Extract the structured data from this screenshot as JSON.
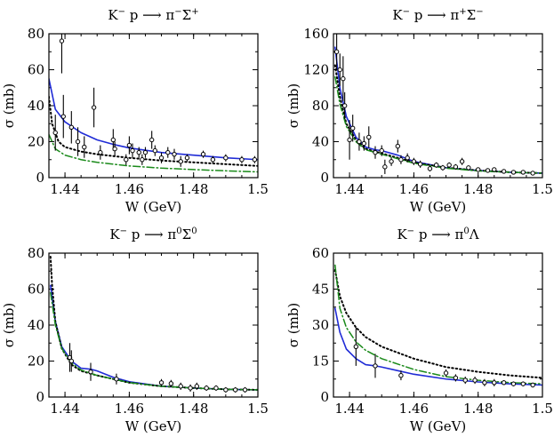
{
  "colors": {
    "blue_solid": "#1f2bd6",
    "black_dotted": "#000000",
    "green_dashdot": "#1a8a1a"
  },
  "chart_data": [
    {
      "type": "scatter",
      "title": {
        "prefix": "K",
        "prefix_sup": "−",
        "mid": " p ",
        "arrow": "⟶",
        "particle1": "π",
        "particle1_sup": "−",
        "particle2": "Σ",
        "particle2_sup": "+"
      },
      "xlabel": "W (GeV)",
      "ylabel": "σ (mb)",
      "xlim": [
        1.435,
        1.5
      ],
      "ylim": [
        0,
        80
      ],
      "xticks": [
        1.44,
        1.46,
        1.48,
        1.5
      ],
      "xtick_labels": [
        "1.44",
        "1.46",
        "1.48",
        "1.5"
      ],
      "yticks": [
        0,
        20,
        40,
        60,
        80
      ],
      "ytick_labels": [
        "0",
        "20",
        "40",
        "60",
        "80"
      ],
      "series": [
        {
          "name": "blue-solid",
          "x": [
            1.435,
            1.437,
            1.44,
            1.445,
            1.45,
            1.455,
            1.46,
            1.47,
            1.48,
            1.49,
            1.5
          ],
          "y": [
            55,
            38,
            31,
            25,
            21,
            18.5,
            16.5,
            14,
            12.5,
            11,
            10
          ]
        },
        {
          "name": "black-dotted",
          "x": [
            1.435,
            1.436,
            1.438,
            1.44,
            1.445,
            1.45,
            1.46,
            1.47,
            1.48,
            1.49,
            1.5
          ],
          "y": [
            45,
            30,
            20,
            17,
            14.5,
            13,
            11,
            9.5,
            8.5,
            7.5,
            6.5
          ]
        },
        {
          "name": "green-dashdot",
          "x": [
            1.435,
            1.437,
            1.44,
            1.445,
            1.45,
            1.46,
            1.47,
            1.48,
            1.49,
            1.5
          ],
          "y": [
            24,
            16,
            12.5,
            10,
            8.5,
            6.5,
            5.3,
            4.5,
            3.8,
            3.2
          ]
        }
      ],
      "points": [
        {
          "x": 1.437,
          "y": 25,
          "err": 10
        },
        {
          "x": 1.439,
          "y": 76,
          "err": 18
        },
        {
          "x": 1.4395,
          "y": 34,
          "err": 12
        },
        {
          "x": 1.442,
          "y": 28,
          "err": 9
        },
        {
          "x": 1.444,
          "y": 20,
          "err": 8
        },
        {
          "x": 1.446,
          "y": 17,
          "err": 6
        },
        {
          "x": 1.449,
          "y": 39,
          "err": 11
        },
        {
          "x": 1.451,
          "y": 14,
          "err": 4
        },
        {
          "x": 1.455,
          "y": 21,
          "err": 6
        },
        {
          "x": 1.4555,
          "y": 16,
          "err": 4
        },
        {
          "x": 1.459,
          "y": 10,
          "err": 3
        },
        {
          "x": 1.46,
          "y": 18,
          "err": 5
        },
        {
          "x": 1.461,
          "y": 15,
          "err": 4
        },
        {
          "x": 1.463,
          "y": 14,
          "err": 3
        },
        {
          "x": 1.464,
          "y": 10,
          "err": 3
        },
        {
          "x": 1.465,
          "y": 14,
          "err": 3
        },
        {
          "x": 1.467,
          "y": 21,
          "err": 5
        },
        {
          "x": 1.468,
          "y": 15,
          "err": 3
        },
        {
          "x": 1.47,
          "y": 11,
          "err": 3
        },
        {
          "x": 1.472,
          "y": 14,
          "err": 3
        },
        {
          "x": 1.474,
          "y": 13,
          "err": 3
        },
        {
          "x": 1.476,
          "y": 9,
          "err": 3
        },
        {
          "x": 1.478,
          "y": 11,
          "err": 2
        },
        {
          "x": 1.483,
          "y": 13,
          "err": 2
        },
        {
          "x": 1.486,
          "y": 10,
          "err": 2
        },
        {
          "x": 1.49,
          "y": 11,
          "err": 2
        },
        {
          "x": 1.495,
          "y": 10,
          "err": 2
        },
        {
          "x": 1.499,
          "y": 10,
          "err": 2
        }
      ]
    },
    {
      "type": "scatter",
      "title": {
        "prefix": "K",
        "prefix_sup": "−",
        "mid": " p ",
        "arrow": "⟶",
        "particle1": "π",
        "particle1_sup": "+",
        "particle2": "Σ",
        "particle2_sup": "−"
      },
      "xlabel": "W (GeV)",
      "ylabel": "σ (mb)",
      "xlim": [
        1.435,
        1.5
      ],
      "ylim": [
        0,
        160
      ],
      "xticks": [
        1.44,
        1.46,
        1.48,
        1.5
      ],
      "xtick_labels": [
        "1.44",
        "1.46",
        "1.48",
        "1.5"
      ],
      "yticks": [
        0,
        40,
        80,
        120,
        160
      ],
      "ytick_labels": [
        "0",
        "40",
        "80",
        "120",
        "160"
      ],
      "series": [
        {
          "name": "blue-solid",
          "x": [
            1.4355,
            1.437,
            1.439,
            1.442,
            1.445,
            1.448,
            1.45,
            1.455,
            1.46,
            1.47,
            1.48,
            1.49,
            1.5
          ],
          "y": [
            145,
            100,
            68,
            45,
            34,
            31,
            30,
            25,
            18,
            11,
            8,
            6,
            5
          ]
        },
        {
          "name": "black-dotted",
          "x": [
            1.4355,
            1.437,
            1.439,
            1.442,
            1.445,
            1.45,
            1.46,
            1.47,
            1.48,
            1.49,
            1.5
          ],
          "y": [
            125,
            90,
            60,
            42,
            32,
            27,
            17,
            11,
            8,
            6,
            5
          ]
        },
        {
          "name": "green-dashdot",
          "x": [
            1.4355,
            1.437,
            1.439,
            1.442,
            1.445,
            1.45,
            1.46,
            1.47,
            1.48,
            1.49,
            1.5
          ],
          "y": [
            112,
            82,
            57,
            40,
            31,
            26,
            16,
            10.5,
            7.5,
            6,
            5
          ]
        }
      ],
      "points": [
        {
          "x": 1.436,
          "y": 140,
          "err": 20
        },
        {
          "x": 1.437,
          "y": 120,
          "err": 18
        },
        {
          "x": 1.438,
          "y": 110,
          "err": 25
        },
        {
          "x": 1.4385,
          "y": 80,
          "err": 15
        },
        {
          "x": 1.44,
          "y": 42,
          "err": 22
        },
        {
          "x": 1.441,
          "y": 55,
          "err": 15
        },
        {
          "x": 1.443,
          "y": 40,
          "err": 10
        },
        {
          "x": 1.4445,
          "y": 38,
          "err": 8
        },
        {
          "x": 1.446,
          "y": 45,
          "err": 12
        },
        {
          "x": 1.448,
          "y": 28,
          "err": 7
        },
        {
          "x": 1.45,
          "y": 30,
          "err": 6
        },
        {
          "x": 1.451,
          "y": 12,
          "err": 8
        },
        {
          "x": 1.453,
          "y": 18,
          "err": 5
        },
        {
          "x": 1.455,
          "y": 35,
          "err": 7
        },
        {
          "x": 1.456,
          "y": 20,
          "err": 5
        },
        {
          "x": 1.458,
          "y": 22,
          "err": 5
        },
        {
          "x": 1.46,
          "y": 18,
          "err": 4
        },
        {
          "x": 1.462,
          "y": 15,
          "err": 4
        },
        {
          "x": 1.465,
          "y": 10,
          "err": 3
        },
        {
          "x": 1.467,
          "y": 14,
          "err": 3
        },
        {
          "x": 1.469,
          "y": 11,
          "err": 3
        },
        {
          "x": 1.471,
          "y": 14,
          "err": 3
        },
        {
          "x": 1.473,
          "y": 12,
          "err": 3
        },
        {
          "x": 1.475,
          "y": 18,
          "err": 4
        },
        {
          "x": 1.477,
          "y": 11,
          "err": 2
        },
        {
          "x": 1.48,
          "y": 9,
          "err": 2
        },
        {
          "x": 1.483,
          "y": 8,
          "err": 2
        },
        {
          "x": 1.485,
          "y": 9,
          "err": 2
        },
        {
          "x": 1.488,
          "y": 7,
          "err": 2
        },
        {
          "x": 1.491,
          "y": 6,
          "err": 2
        },
        {
          "x": 1.494,
          "y": 6,
          "err": 2
        },
        {
          "x": 1.497,
          "y": 5,
          "err": 1
        }
      ]
    },
    {
      "type": "scatter",
      "title": {
        "prefix": "K",
        "prefix_sup": "−",
        "mid": " p ",
        "arrow": "⟶",
        "particle1": "π",
        "particle1_sup": "0",
        "particle2": "Σ",
        "particle2_sup": "0"
      },
      "xlabel": "W (GeV)",
      "ylabel": "σ (mb)",
      "xlim": [
        1.435,
        1.5
      ],
      "ylim": [
        0,
        80
      ],
      "xticks": [
        1.44,
        1.46,
        1.48,
        1.5
      ],
      "xtick_labels": [
        "1.44",
        "1.46",
        "1.48",
        "1.5"
      ],
      "yticks": [
        0,
        20,
        40,
        60,
        80
      ],
      "ytick_labels": [
        "0",
        "20",
        "40",
        "60",
        "80"
      ],
      "series": [
        {
          "name": "blue-solid",
          "x": [
            1.4355,
            1.437,
            1.439,
            1.442,
            1.445,
            1.448,
            1.45,
            1.455,
            1.46,
            1.47,
            1.48,
            1.49,
            1.5
          ],
          "y": [
            62,
            42,
            28,
            20,
            16,
            15.5,
            14.5,
            11,
            8.5,
            6,
            5,
            4.3,
            4
          ]
        },
        {
          "name": "black-dotted",
          "x": [
            1.4355,
            1.436,
            1.437,
            1.439,
            1.442,
            1.445,
            1.45,
            1.46,
            1.47,
            1.48,
            1.49,
            1.5
          ],
          "y": [
            78,
            62,
            42,
            27,
            18,
            14.5,
            12,
            8,
            6,
            5,
            4.3,
            4
          ]
        },
        {
          "name": "green-dashdot",
          "x": [
            1.4355,
            1.437,
            1.439,
            1.442,
            1.445,
            1.45,
            1.46,
            1.47,
            1.48,
            1.49,
            1.5
          ],
          "y": [
            58,
            40,
            27,
            19,
            15,
            12,
            8,
            6,
            5,
            4.3,
            4
          ]
        }
      ],
      "points": [
        {
          "x": 1.4415,
          "y": 22,
          "err": 8
        },
        {
          "x": 1.442,
          "y": 20,
          "err": 6
        },
        {
          "x": 1.448,
          "y": 14,
          "err": 5
        },
        {
          "x": 1.456,
          "y": 10,
          "err": 3
        },
        {
          "x": 1.47,
          "y": 8,
          "err": 2
        },
        {
          "x": 1.473,
          "y": 7.5,
          "err": 2
        },
        {
          "x": 1.476,
          "y": 6,
          "err": 2
        },
        {
          "x": 1.479,
          "y": 5,
          "err": 2
        },
        {
          "x": 1.481,
          "y": 6,
          "err": 2
        },
        {
          "x": 1.484,
          "y": 5,
          "err": 1.5
        },
        {
          "x": 1.487,
          "y": 5,
          "err": 1.5
        },
        {
          "x": 1.49,
          "y": 4,
          "err": 1.5
        },
        {
          "x": 1.493,
          "y": 4,
          "err": 1.5
        },
        {
          "x": 1.496,
          "y": 4,
          "err": 1.5
        }
      ]
    },
    {
      "type": "scatter",
      "title": {
        "prefix": "K",
        "prefix_sup": "−",
        "mid": " p ",
        "arrow": "⟶",
        "particle1": "π",
        "particle1_sup": "0",
        "particle2": "Λ",
        "particle2_sup": ""
      },
      "xlabel": "W (GeV)",
      "ylabel": "σ (mb)",
      "xlim": [
        1.435,
        1.5
      ],
      "ylim": [
        0,
        60
      ],
      "xticks": [
        1.44,
        1.46,
        1.48,
        1.5
      ],
      "xtick_labels": [
        "1.44",
        "1.46",
        "1.48",
        "1.5"
      ],
      "yticks": [
        0,
        15,
        30,
        45,
        60
      ],
      "ytick_labels": [
        "0",
        "15",
        "30",
        "45",
        "60"
      ],
      "series": [
        {
          "name": "blue-solid",
          "x": [
            1.4355,
            1.437,
            1.439,
            1.442,
            1.445,
            1.448,
            1.45,
            1.455,
            1.46,
            1.47,
            1.48,
            1.49,
            1.5
          ],
          "y": [
            37,
            27,
            20,
            16,
            13.5,
            13,
            12.5,
            11,
            9.5,
            7.5,
            6.3,
            5.5,
            5
          ]
        },
        {
          "name": "black-dotted",
          "x": [
            1.4355,
            1.437,
            1.439,
            1.442,
            1.445,
            1.45,
            1.46,
            1.47,
            1.48,
            1.49,
            1.5
          ],
          "y": [
            53,
            42,
            35,
            29,
            25,
            21,
            16,
            12.5,
            10.5,
            9,
            8
          ]
        },
        {
          "name": "green-dashdot",
          "x": [
            1.4355,
            1.437,
            1.439,
            1.442,
            1.445,
            1.45,
            1.46,
            1.47,
            1.48,
            1.49,
            1.5
          ],
          "y": [
            55,
            37,
            29,
            23,
            19.5,
            16,
            11.5,
            8.5,
            7,
            6,
            5.5
          ]
        }
      ],
      "points": [
        {
          "x": 1.442,
          "y": 21,
          "err": 8
        },
        {
          "x": 1.448,
          "y": 13,
          "err": 5
        },
        {
          "x": 1.456,
          "y": 9,
          "err": 2
        },
        {
          "x": 1.47,
          "y": 10,
          "err": 1.5
        },
        {
          "x": 1.473,
          "y": 8,
          "err": 1.5
        },
        {
          "x": 1.476,
          "y": 7,
          "err": 1.5
        },
        {
          "x": 1.479,
          "y": 7,
          "err": 1.5
        },
        {
          "x": 1.482,
          "y": 6,
          "err": 1.5
        },
        {
          "x": 1.485,
          "y": 6,
          "err": 1.5
        },
        {
          "x": 1.488,
          "y": 6,
          "err": 1
        },
        {
          "x": 1.491,
          "y": 5.5,
          "err": 1
        },
        {
          "x": 1.494,
          "y": 5.5,
          "err": 1
        },
        {
          "x": 1.497,
          "y": 5,
          "err": 1
        }
      ]
    }
  ]
}
